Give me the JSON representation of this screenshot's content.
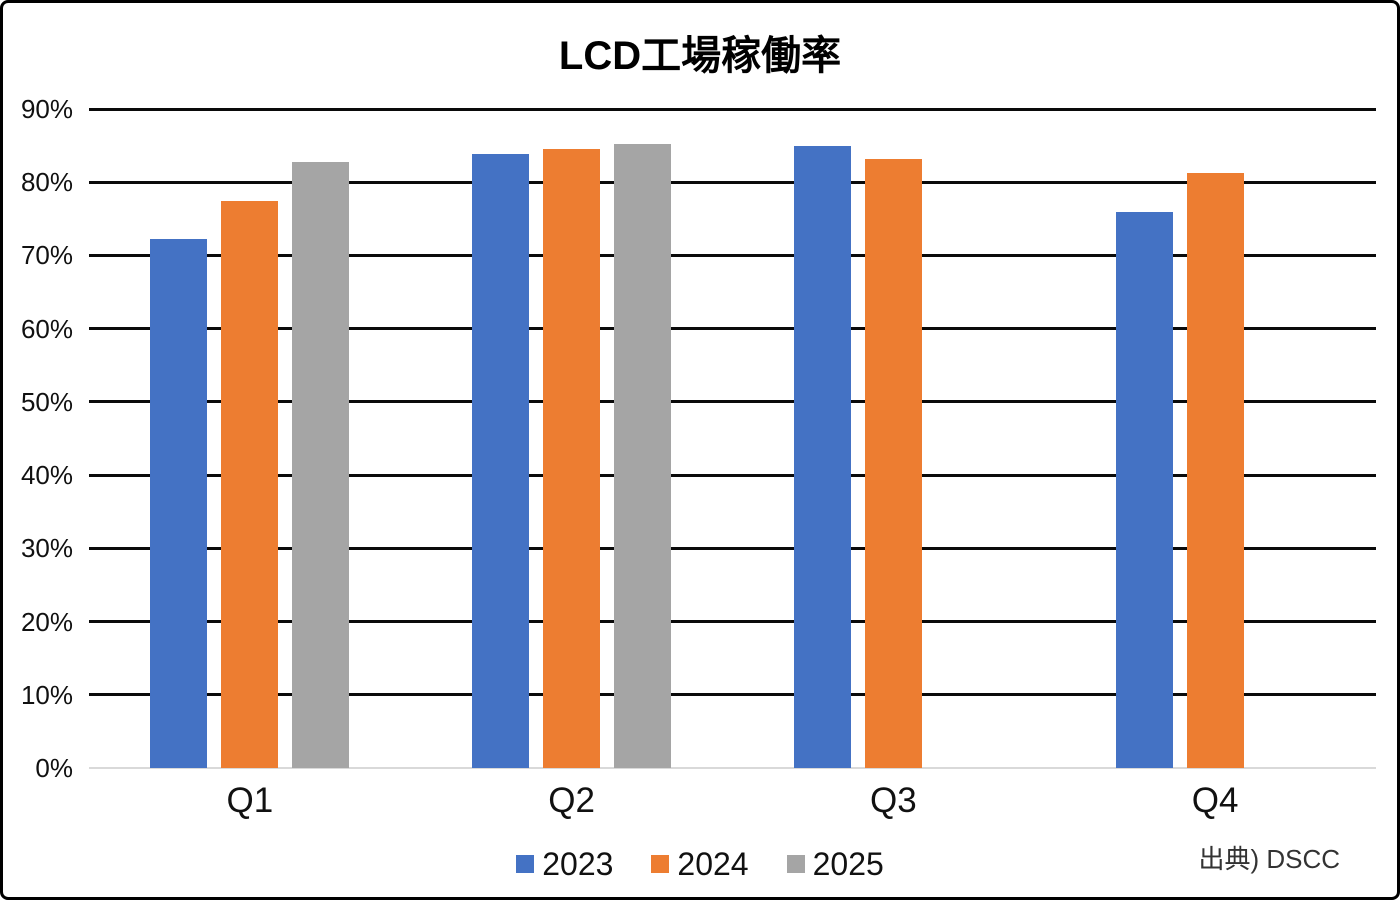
{
  "title": "LCD工場稼働率",
  "source_note": "出典) DSCC",
  "chart_data": {
    "type": "bar",
    "title": "LCD工場稼働率",
    "categories": [
      "Q1",
      "Q2",
      "Q3",
      "Q4"
    ],
    "series": [
      {
        "name": "2023",
        "color": "#4472C4",
        "values": [
          72.2,
          83.8,
          84.9,
          76.0
        ]
      },
      {
        "name": "2024",
        "color": "#ED7D31",
        "values": [
          77.5,
          84.5,
          83.2,
          81.2
        ]
      },
      {
        "name": "2025",
        "color": "#A5A5A5",
        "values": [
          82.8,
          85.2,
          null,
          null
        ]
      }
    ],
    "xlabel": "",
    "ylabel": "",
    "ylim": [
      0,
      90
    ],
    "ytick_step": 10,
    "yticks": [
      "0%",
      "10%",
      "20%",
      "30%",
      "40%",
      "50%",
      "60%",
      "70%",
      "80%",
      "90%"
    ],
    "grid": "horizontal",
    "gridline_color": "#0a0a0a",
    "baseline_color": "#d9d9d9",
    "legend_position": "bottom",
    "annotation": "出典) DSCC"
  }
}
